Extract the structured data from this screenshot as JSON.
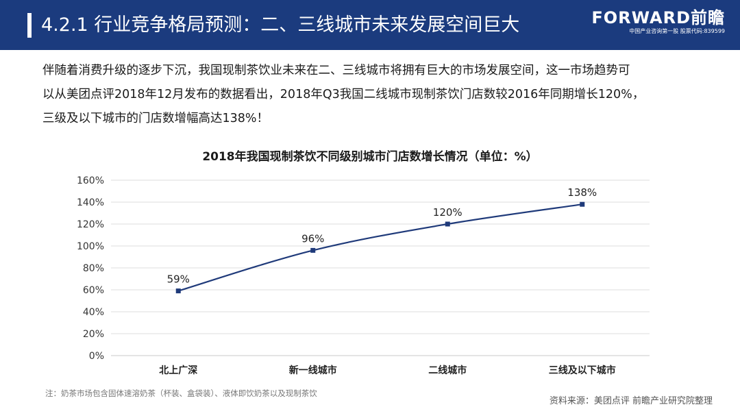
{
  "header": {
    "title": "4.2.1 行业竞争格局预测：二、三线城市未来发展空间巨大",
    "brand_name": "FORWARD前瞻",
    "brand_sub": "中国产业咨询第一股 股票代码:839599"
  },
  "intro_lines": [
    "伴随着消费升级的逐步下沉，我国现制茶饮业未来在二、三线城市将拥有巨大的市场发展空间，这一市场趋势可",
    "以从美团点评2018年12月发布的数据看出，2018年Q3我国二线城市现制茶饮门店数较2016年同期增长120%，",
    "三级及以下城市的门店数增幅高达138%！"
  ],
  "chart_data": {
    "type": "line",
    "title": "2018年我国现制茶饮不同级别城市门店数增长情况（单位：%）",
    "categories": [
      "北上广深",
      "新一线城市",
      "二线城市",
      "三线及以下城市"
    ],
    "values": [
      59,
      96,
      120,
      138
    ],
    "data_labels": [
      "59%",
      "96%",
      "120%",
      "138%"
    ],
    "y_ticks": [
      "0%",
      "20%",
      "40%",
      "60%",
      "80%",
      "100%",
      "120%",
      "140%",
      "160%"
    ],
    "ylim": [
      0,
      160
    ],
    "grid": true,
    "line_color": "#1f3a7a"
  },
  "footer": {
    "note": "注：奶茶市场包含固体速溶奶茶（杯装、盒袋装）、液体即饮奶茶以及现制茶饮",
    "source": "资料来源：美团点评 前瞻产业研究院整理"
  }
}
